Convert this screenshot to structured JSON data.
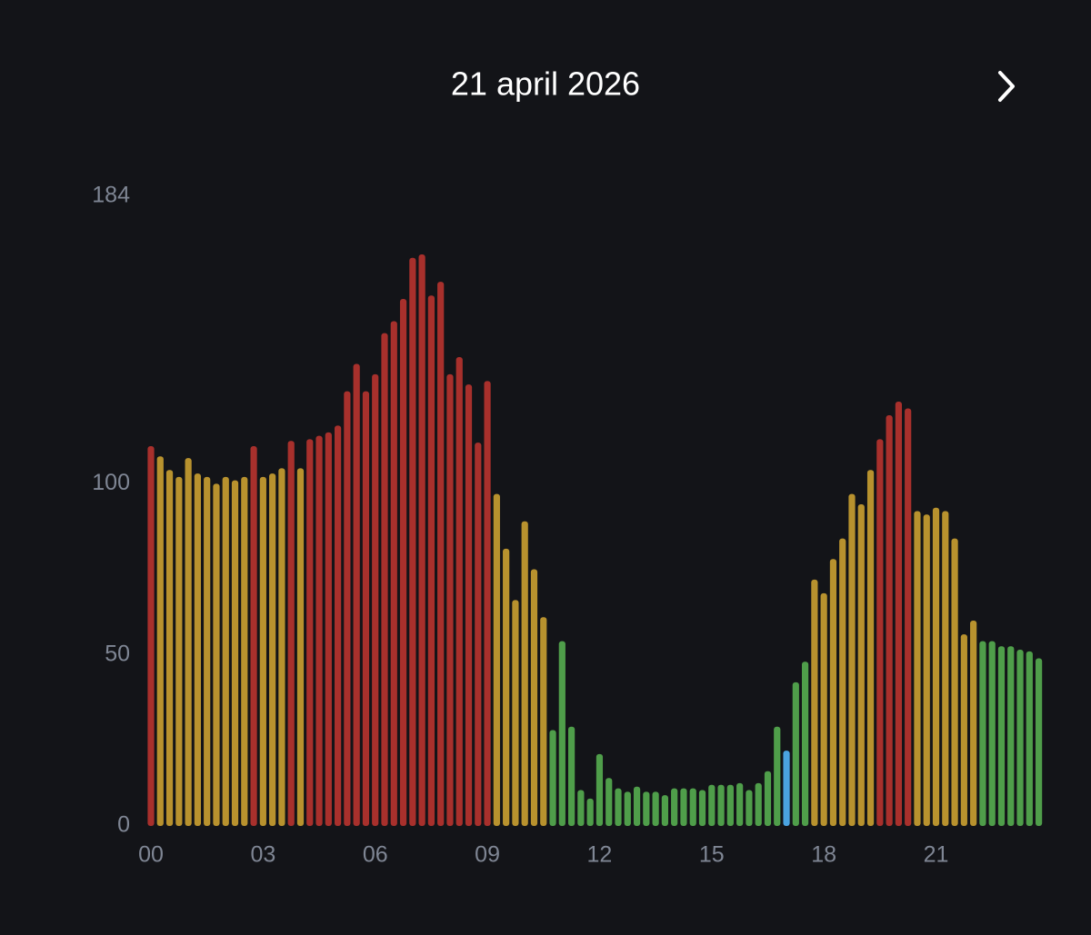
{
  "chart_data": {
    "type": "bar",
    "title": "21 april 2026",
    "categories": [
      "00",
      null,
      null,
      null,
      null,
      null,
      null,
      null,
      null,
      null,
      null,
      null,
      "03",
      null,
      null,
      null,
      null,
      null,
      null,
      null,
      null,
      null,
      null,
      null,
      "06",
      null,
      null,
      null,
      null,
      null,
      null,
      null,
      null,
      null,
      null,
      null,
      "09",
      null,
      null,
      null,
      null,
      null,
      null,
      null,
      null,
      null,
      null,
      null,
      "12",
      null,
      null,
      null,
      null,
      null,
      null,
      null,
      null,
      null,
      null,
      null,
      "15",
      null,
      null,
      null,
      null,
      null,
      null,
      null,
      null,
      null,
      null,
      null,
      "18",
      null,
      null,
      null,
      null,
      null,
      null,
      null,
      null,
      null,
      null,
      null,
      "21",
      null,
      null,
      null,
      null,
      null,
      null,
      null,
      null,
      null,
      null,
      null
    ],
    "values": [
      111,
      108,
      104,
      102,
      107.5,
      103,
      102,
      100,
      102,
      101,
      102,
      111,
      102,
      103,
      104.5,
      112.5,
      104.5,
      113,
      114,
      115,
      117,
      127,
      135,
      127,
      132,
      144,
      147.5,
      154,
      166,
      167,
      155,
      159,
      132,
      137,
      129,
      112,
      130,
      97,
      81,
      66,
      89,
      75,
      61,
      28,
      54,
      29,
      10.5,
      8,
      21,
      14,
      11,
      10,
      11.5,
      10,
      10,
      9,
      11,
      11,
      11,
      10.5,
      12,
      12,
      12,
      12.5,
      10.5,
      12.5,
      16,
      29,
      22,
      42,
      48,
      72,
      68,
      78,
      84,
      97,
      94,
      104,
      113,
      120,
      124,
      122,
      92,
      91,
      93,
      92,
      84,
      56,
      60,
      54,
      54,
      52.5,
      52.5,
      51.5,
      51,
      49
    ],
    "colors": [
      "#a8302c",
      "#b8922e",
      "#b8922e",
      "#b8922e",
      "#b8922e",
      "#b8922e",
      "#b8922e",
      "#b8922e",
      "#b8922e",
      "#b8922e",
      "#b8922e",
      "#a8302c",
      "#b8922e",
      "#b8922e",
      "#b8922e",
      "#a8302c",
      "#b8922e",
      "#a8302c",
      "#a8302c",
      "#a8302c",
      "#a8302c",
      "#a8302c",
      "#a8302c",
      "#a8302c",
      "#a8302c",
      "#a8302c",
      "#a8302c",
      "#a8302c",
      "#a8302c",
      "#a8302c",
      "#a8302c",
      "#a8302c",
      "#a8302c",
      "#a8302c",
      "#a8302c",
      "#a8302c",
      "#a8302c",
      "#b8922e",
      "#b8922e",
      "#b8922e",
      "#b8922e",
      "#b8922e",
      "#b8922e",
      "#4f9e4a",
      "#4f9e4a",
      "#4f9e4a",
      "#4f9e4a",
      "#4f9e4a",
      "#4f9e4a",
      "#4f9e4a",
      "#4f9e4a",
      "#4f9e4a",
      "#4f9e4a",
      "#4f9e4a",
      "#4f9e4a",
      "#4f9e4a",
      "#4f9e4a",
      "#4f9e4a",
      "#4f9e4a",
      "#4f9e4a",
      "#4f9e4a",
      "#4f9e4a",
      "#4f9e4a",
      "#4f9e4a",
      "#4f9e4a",
      "#4f9e4a",
      "#4f9e4a",
      "#4f9e4a",
      "#4aa3e0",
      "#4f9e4a",
      "#4f9e4a",
      "#b8922e",
      "#b8922e",
      "#b8922e",
      "#b8922e",
      "#b8922e",
      "#b8922e",
      "#b8922e",
      "#a8302c",
      "#a8302c",
      "#a8302c",
      "#a8302c",
      "#b8922e",
      "#b8922e",
      "#b8922e",
      "#b8922e",
      "#b8922e",
      "#b8922e",
      "#b8922e",
      "#4f9e4a",
      "#4f9e4a",
      "#4f9e4a",
      "#4f9e4a",
      "#4f9e4a",
      "#4f9e4a",
      "#4f9e4a"
    ],
    "ylim": [
      0,
      184
    ],
    "yticks": [
      0,
      50,
      100,
      184
    ]
  }
}
